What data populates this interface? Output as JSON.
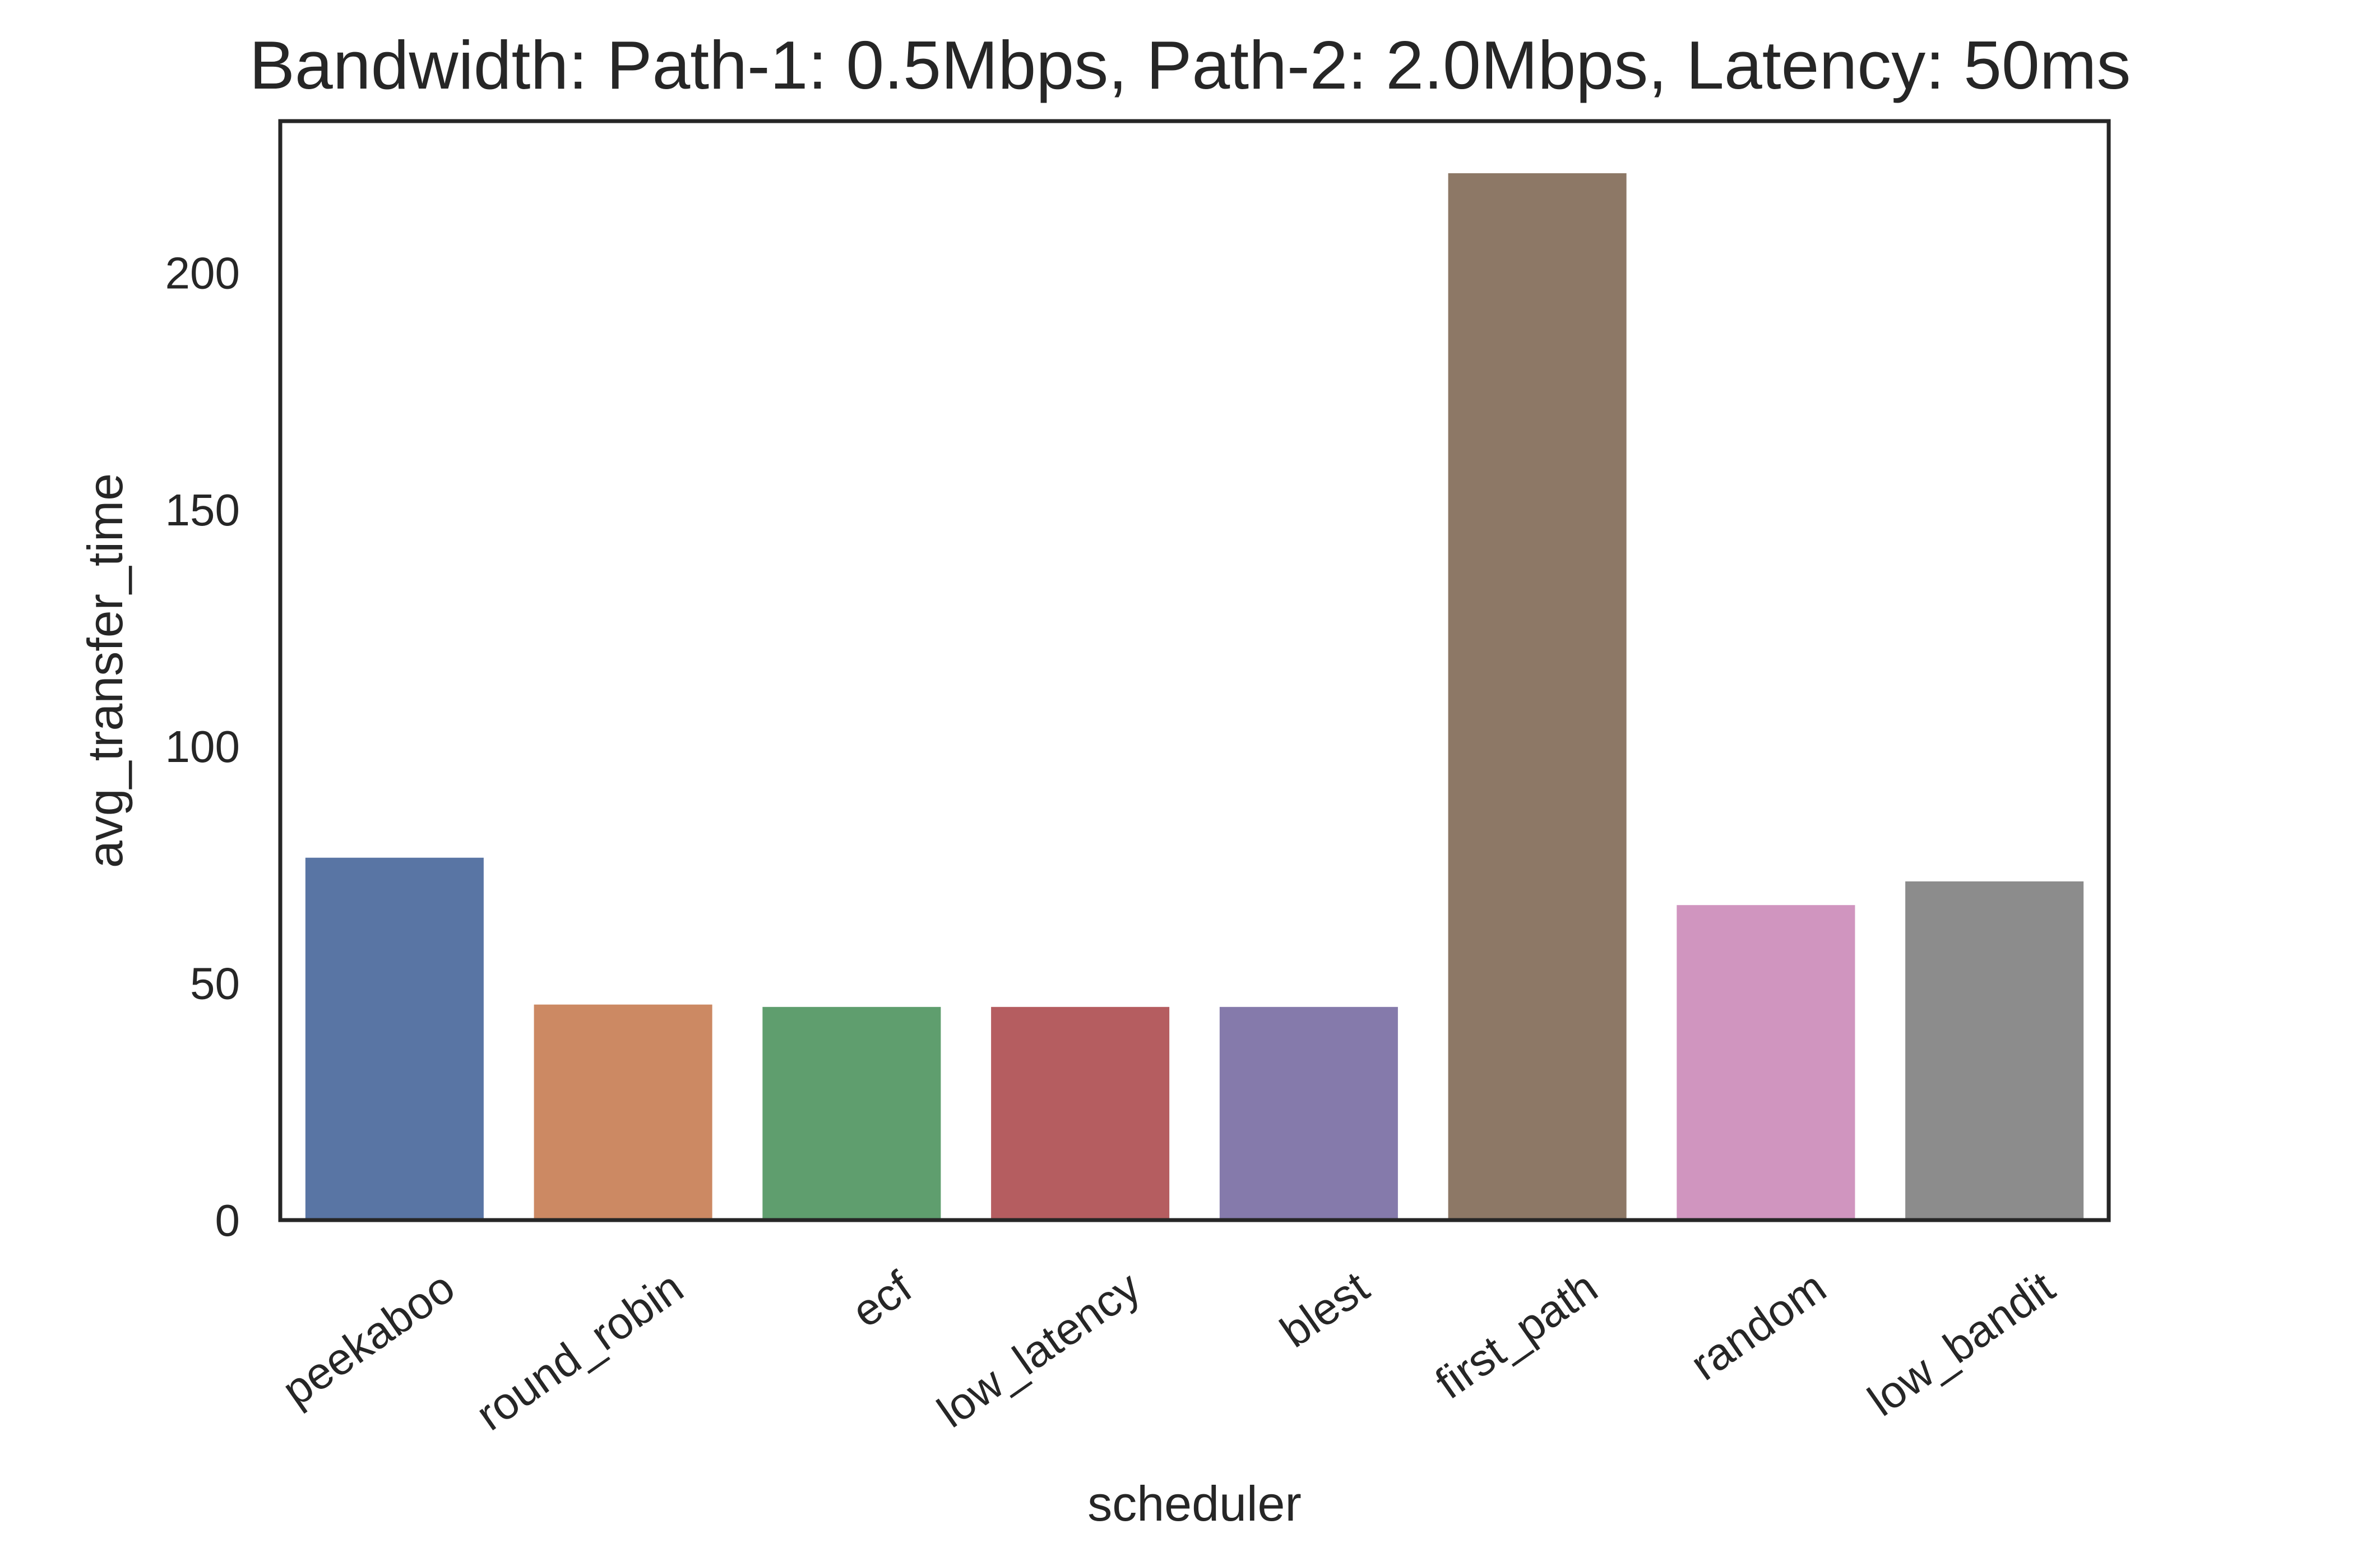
{
  "chart_data": {
    "type": "bar",
    "title": "Bandwidth: Path-1: 0.5Mbps, Path-2: 2.0Mbps, Latency: 50ms",
    "xlabel": "scheduler",
    "ylabel": "avg_transfer_time",
    "categories": [
      "peekaboo",
      "round_robin",
      "ecf",
      "low_latency",
      "blest",
      "first_path",
      "random",
      "low_bandit"
    ],
    "values": [
      76.5,
      45.5,
      45,
      45,
      45,
      221,
      66.5,
      71.5
    ],
    "colors": [
      "#5975a4",
      "#cc8963",
      "#5f9e6e",
      "#b55d60",
      "#857aab",
      "#8d7866",
      "#d095bf",
      "#8c8c8c"
    ],
    "ylim": [
      0,
      232
    ],
    "yticks": [
      0,
      50,
      100,
      150,
      200
    ],
    "grid": false,
    "legend": false
  }
}
